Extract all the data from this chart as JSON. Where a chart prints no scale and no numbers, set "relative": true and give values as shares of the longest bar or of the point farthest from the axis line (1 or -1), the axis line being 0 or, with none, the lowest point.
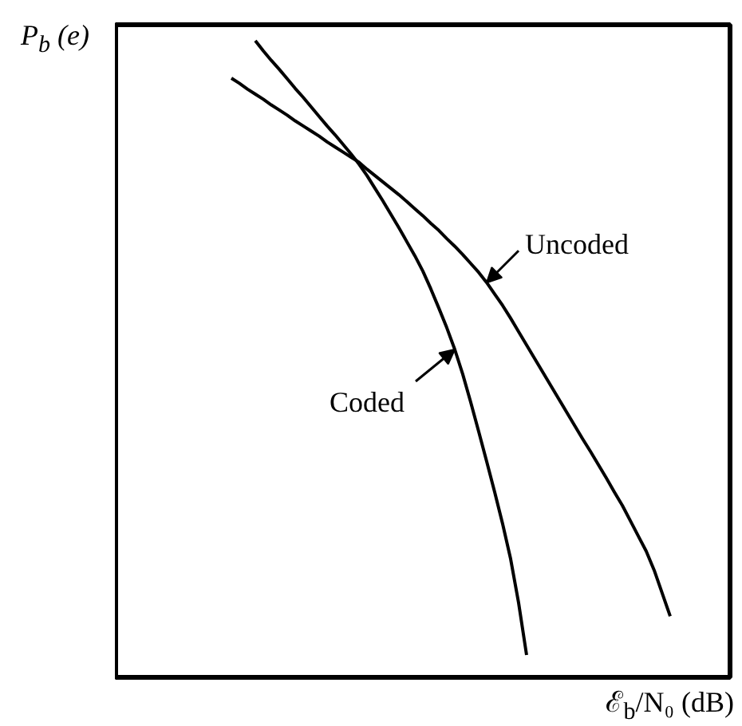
{
  "chart_data": {
    "type": "line",
    "relative": true,
    "xlabel": "ℰ$_{b}$/N₀ (dB)",
    "ylabel": "P$_{b}$ (e)",
    "categories": [
      null,
      null,
      null,
      null,
      null,
      null,
      null,
      null,
      null,
      null,
      null,
      null,
      null,
      null,
      null,
      null,
      null,
      null,
      null,
      null,
      null,
      null,
      null,
      null,
      null,
      null,
      null,
      null,
      null,
      null,
      null,
      null,
      null,
      null,
      null,
      null,
      null,
      null,
      null,
      null,
      null,
      null,
      null,
      null,
      null,
      null,
      null,
      null,
      null,
      null,
      null,
      null,
      null,
      null,
      null,
      null,
      null,
      null,
      null,
      null,
      null,
      null,
      null,
      null,
      null,
      null,
      null,
      null,
      null,
      null,
      null,
      null,
      null,
      null,
      null,
      null,
      null
    ],
    "series": [
      {
        "name": "Uncoded",
        "color": "#000000",
        "values": [
          null,
          null,
          null,
          null,
          null,
          null,
          null,
          null,
          null,
          null,
          null,
          null,
          null,
          null,
          0.941,
          0.933,
          0.924,
          0.916,
          0.908,
          0.899,
          0.891,
          0.883,
          0.874,
          0.866,
          0.858,
          0.85,
          0.841,
          0.833,
          0.825,
          0.817,
          0.809,
          0.798,
          0.788,
          0.778,
          0.768,
          0.758,
          0.747,
          0.736,
          0.725,
          0.713,
          0.702,
          0.689,
          0.677,
          0.664,
          0.65,
          0.636,
          0.62,
          0.602,
          0.584,
          0.564,
          0.543,
          0.522,
          0.501,
          0.48,
          0.459,
          0.438,
          0.417,
          0.396,
          0.375,
          0.355,
          0.334,
          0.313,
          0.291,
          0.27,
          0.246,
          0.222,
          0.198,
          0.168,
          0.132,
          0.096,
          null,
          null,
          null,
          null,
          null,
          null,
          null
        ]
      },
      {
        "name": "Coded",
        "color": "#000000",
        "values": [
          null,
          null,
          null,
          null,
          null,
          null,
          null,
          null,
          null,
          null,
          null,
          null,
          null,
          null,
          null,
          null,
          null,
          1.0,
          0.984,
          0.969,
          0.955,
          0.94,
          0.925,
          0.911,
          0.896,
          0.881,
          0.866,
          0.852,
          0.837,
          0.822,
          0.806,
          0.788,
          0.768,
          0.748,
          0.727,
          0.706,
          0.684,
          0.662,
          0.638,
          0.61,
          0.58,
          0.549,
          0.515,
          0.476,
          0.432,
          0.386,
          0.339,
          0.291,
          0.241,
          0.186,
          0.117,
          0.035,
          null,
          null,
          null,
          null,
          null,
          null,
          null,
          null,
          null,
          null,
          null,
          null,
          null,
          null,
          null,
          null,
          null,
          null,
          null,
          null,
          null,
          null,
          null,
          null,
          null
        ]
      }
    ]
  }
}
